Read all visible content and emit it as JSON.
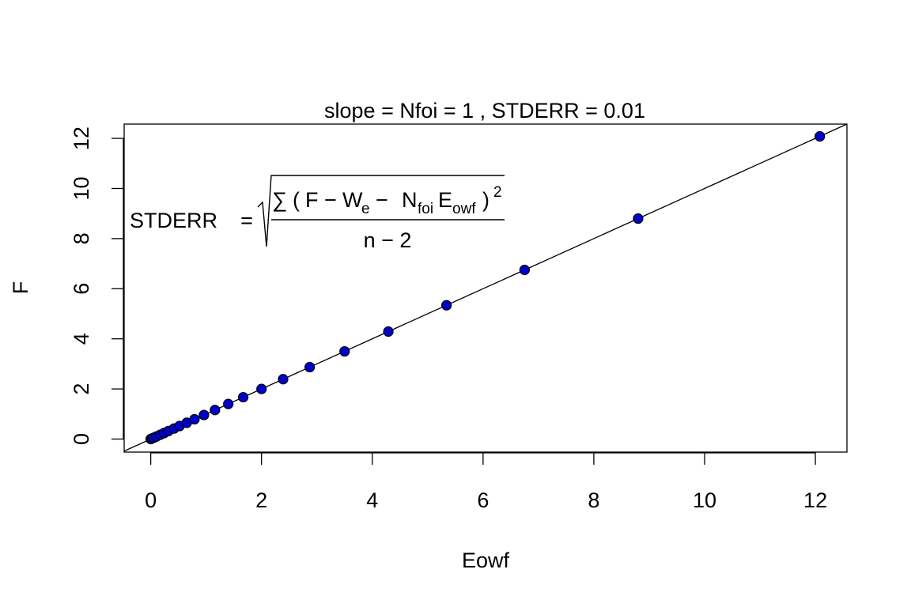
{
  "chart_data": {
    "type": "scatter",
    "title": "slope = Nfoi =  1  , STDERR =  0.01",
    "xlabel": "Eowf",
    "ylabel": "F",
    "xlim": [
      -0.48,
      12.57
    ],
    "ylim": [
      -0.52,
      12.57
    ],
    "xticks": [
      0,
      2,
      4,
      6,
      8,
      10,
      12
    ],
    "yticks": [
      0,
      2,
      4,
      6,
      8,
      10,
      12
    ],
    "x": [
      0,
      0.02,
      0.05,
      0.1,
      0.17,
      0.24,
      0.32,
      0.42,
      0.52,
      0.65,
      0.79,
      0.96,
      1.16,
      1.4,
      1.67,
      2.0,
      2.39,
      2.87,
      3.5,
      4.29,
      5.34,
      6.75,
      8.8,
      12.08
    ],
    "y": [
      0,
      0.02,
      0.05,
      0.1,
      0.17,
      0.24,
      0.32,
      0.42,
      0.52,
      0.65,
      0.79,
      0.96,
      1.16,
      1.4,
      1.67,
      2.0,
      2.39,
      2.87,
      3.5,
      4.29,
      5.34,
      6.75,
      8.8,
      12.08
    ],
    "fit_line": {
      "intercept": 0,
      "slope": 1
    },
    "grid": false,
    "legend": "none",
    "point_fill": "#0000cd",
    "point_stroke": "#000000",
    "annotation": {
      "lhs": "STDERR",
      "eq": "=",
      "sum": "∑",
      "lparen": "(",
      "F": "F",
      "minus1": "−",
      "W": "W",
      "W_sub": "e",
      "minus2": "−",
      "N": "N",
      "N_sub": "foi",
      "E": "E",
      "E_sub": "owf",
      "rparen": ")",
      "power": "2",
      "denominator": "n − 2"
    }
  }
}
